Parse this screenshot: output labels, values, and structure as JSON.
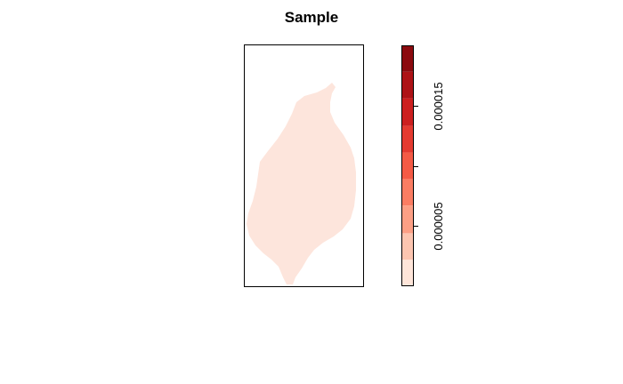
{
  "chart_data": {
    "type": "heatmap",
    "title": "Sample",
    "xlabel": "",
    "ylabel": "",
    "grid": false,
    "legend": {
      "placement": "right",
      "kind": "color-bar",
      "range": [
        0,
        2e-05
      ],
      "breaks": [
        0,
        2.2e-06,
        4.4e-06,
        6.7e-06,
        8.9e-06,
        1.11e-05,
        1.33e-05,
        1.56e-05,
        1.78e-05,
        2e-05
      ],
      "colors": [
        "#fee5d9",
        "#fcc5b0",
        "#fc9f85",
        "#fb7d63",
        "#f45a45",
        "#e43a30",
        "#cc1f1f",
        "#ad1216",
        "#8b0a0f"
      ],
      "ticks": [
        5e-06,
        1e-05,
        1.5e-05
      ],
      "tick_labels": [
        "0.000005",
        "",
        "0.000015"
      ]
    },
    "region": {
      "shape": "single island-shaped region",
      "value_class": 0,
      "fill": "#fde5dc"
    }
  }
}
